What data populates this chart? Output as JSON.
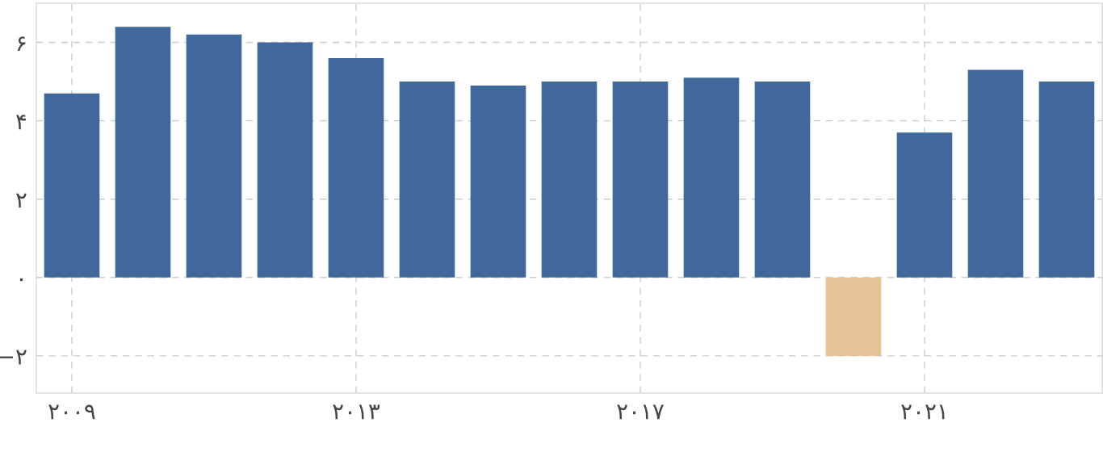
{
  "chart_data": {
    "type": "bar",
    "x": [
      2009,
      2010,
      2011,
      2012,
      2013,
      2014,
      2015,
      2016,
      2017,
      2018,
      2019,
      2020,
      2021,
      2022,
      2023
    ],
    "values": [
      4.7,
      6.4,
      6.2,
      6.0,
      5.6,
      5.0,
      4.9,
      5.0,
      5.0,
      5.1,
      5.0,
      -2.0,
      3.7,
      5.3,
      5.0
    ],
    "colors": [
      "#41689a",
      "#41689a",
      "#41689a",
      "#41689a",
      "#41689a",
      "#41689a",
      "#41689a",
      "#41689a",
      "#41689a",
      "#41689a",
      "#41689a",
      "#e6c294",
      "#41689a",
      "#41689a",
      "#41689a"
    ],
    "xlim": [
      2008.5,
      2023.5
    ],
    "xticks": [
      {
        "value": 2009,
        "label": "۲۰۰۹"
      },
      {
        "value": 2013,
        "label": "۲۰۱۳"
      },
      {
        "value": 2017,
        "label": "۲۰۱۷"
      },
      {
        "value": 2021,
        "label": "۲۰۲۱"
      }
    ],
    "ylim": [
      -2.95,
      7
    ],
    "yticks": [
      {
        "value": -2,
        "label": "−۲"
      },
      {
        "value": 0,
        "label": "۰"
      },
      {
        "value": 2,
        "label": "۲"
      },
      {
        "value": 4,
        "label": "۴"
      },
      {
        "value": 6,
        "label": "۶"
      }
    ],
    "grid": true
  }
}
